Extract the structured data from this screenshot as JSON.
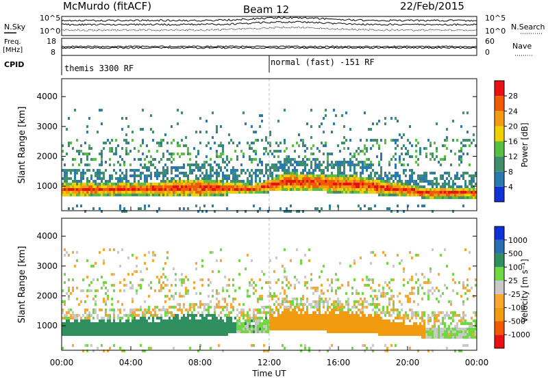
{
  "header": {
    "station": "McMurdo (fitACF)",
    "beam": "Beam 12",
    "date": "22/Feb/2015"
  },
  "strip": {
    "nsky_label": "N.Sky",
    "nsearch_label": "N.Search",
    "freq_label_1": "Freq.",
    "freq_label_2": "[MHz]",
    "nave_label": "Nave",
    "cpid_label": "CPID",
    "left_top_tick": "10^5",
    "left_bottom_tick": "10^0",
    "right_top_tick": "10^5",
    "right_bottom_tick": "10^0",
    "freq_ticks": [
      "18",
      "8"
    ],
    "nave_ticks": [
      "60",
      "0"
    ],
    "cpid_segments": [
      {
        "label": "themis 3300 RF",
        "start_hour": 0
      },
      {
        "label": "normal (fast) -151 RF",
        "start_hour": 12
      }
    ]
  },
  "colors": {
    "power_scale": [
      "#1030d8",
      "#2a7ab0",
      "#3f8f6a",
      "#58c040",
      "#f0d000",
      "#f29a10",
      "#f05a00",
      "#e81010"
    ],
    "velocity_scale": [
      "#e81010",
      "#f05a00",
      "#f29a10",
      "#f8a830",
      "#c8c8c8",
      "#70d840",
      "#2f8f5f",
      "#2a70b0",
      "#1030d8"
    ]
  },
  "chart_data": [
    {
      "type": "heatmap",
      "title": "Power",
      "xlabel": "",
      "ylabel": "Slant Range [km]",
      "x_ticks": [
        "00:00",
        "04:00",
        "08:00",
        "12:00",
        "16:00",
        "20:00",
        "00:00"
      ],
      "xlim_hours": [
        0,
        24
      ],
      "y_ticks": [
        1000,
        2000,
        3000,
        4000
      ],
      "ylim": [
        180,
        4600
      ],
      "colorbar": {
        "label": "Power [dB]",
        "ticks": [
          4,
          8,
          12,
          16,
          20,
          24,
          28
        ],
        "range": [
          0,
          32
        ]
      },
      "main_echo_band_km": [
        {
          "t": 0,
          "lo": 700,
          "hi": 1150
        },
        {
          "t": 4,
          "lo": 750,
          "hi": 1150
        },
        {
          "t": 8,
          "lo": 700,
          "hi": 1300
        },
        {
          "t": 11,
          "lo": 800,
          "hi": 1100
        },
        {
          "t": 13,
          "lo": 900,
          "hi": 1500
        },
        {
          "t": 17,
          "lo": 800,
          "hi": 1400
        },
        {
          "t": 21,
          "lo": 650,
          "hi": 1000
        },
        {
          "t": 24,
          "lo": 650,
          "hi": 1000
        }
      ]
    },
    {
      "type": "heatmap",
      "title": "Velocity",
      "xlabel": "Time UT",
      "ylabel": "Slant Range [km]",
      "x_ticks": [
        "00:00",
        "04:00",
        "08:00",
        "12:00",
        "16:00",
        "20:00",
        "00:00"
      ],
      "xlim_hours": [
        0,
        24
      ],
      "y_ticks": [
        1000,
        2000,
        3000,
        4000
      ],
      "ylim": [
        180,
        4600
      ],
      "colorbar": {
        "label": "Velocity [m s⁻¹]",
        "ticks": [
          1000,
          500,
          100,
          25,
          -25,
          -100,
          -500,
          -1000
        ]
      },
      "main_echo_velocity_ms": [
        {
          "t_start": 0,
          "t_end": 10,
          "velocity": 300
        },
        {
          "t_start": 10,
          "t_end": 12,
          "velocity": 50
        },
        {
          "t_start": 12,
          "t_end": 21,
          "velocity": -200
        },
        {
          "t_start": 21,
          "t_end": 24,
          "velocity": 30
        }
      ]
    }
  ]
}
